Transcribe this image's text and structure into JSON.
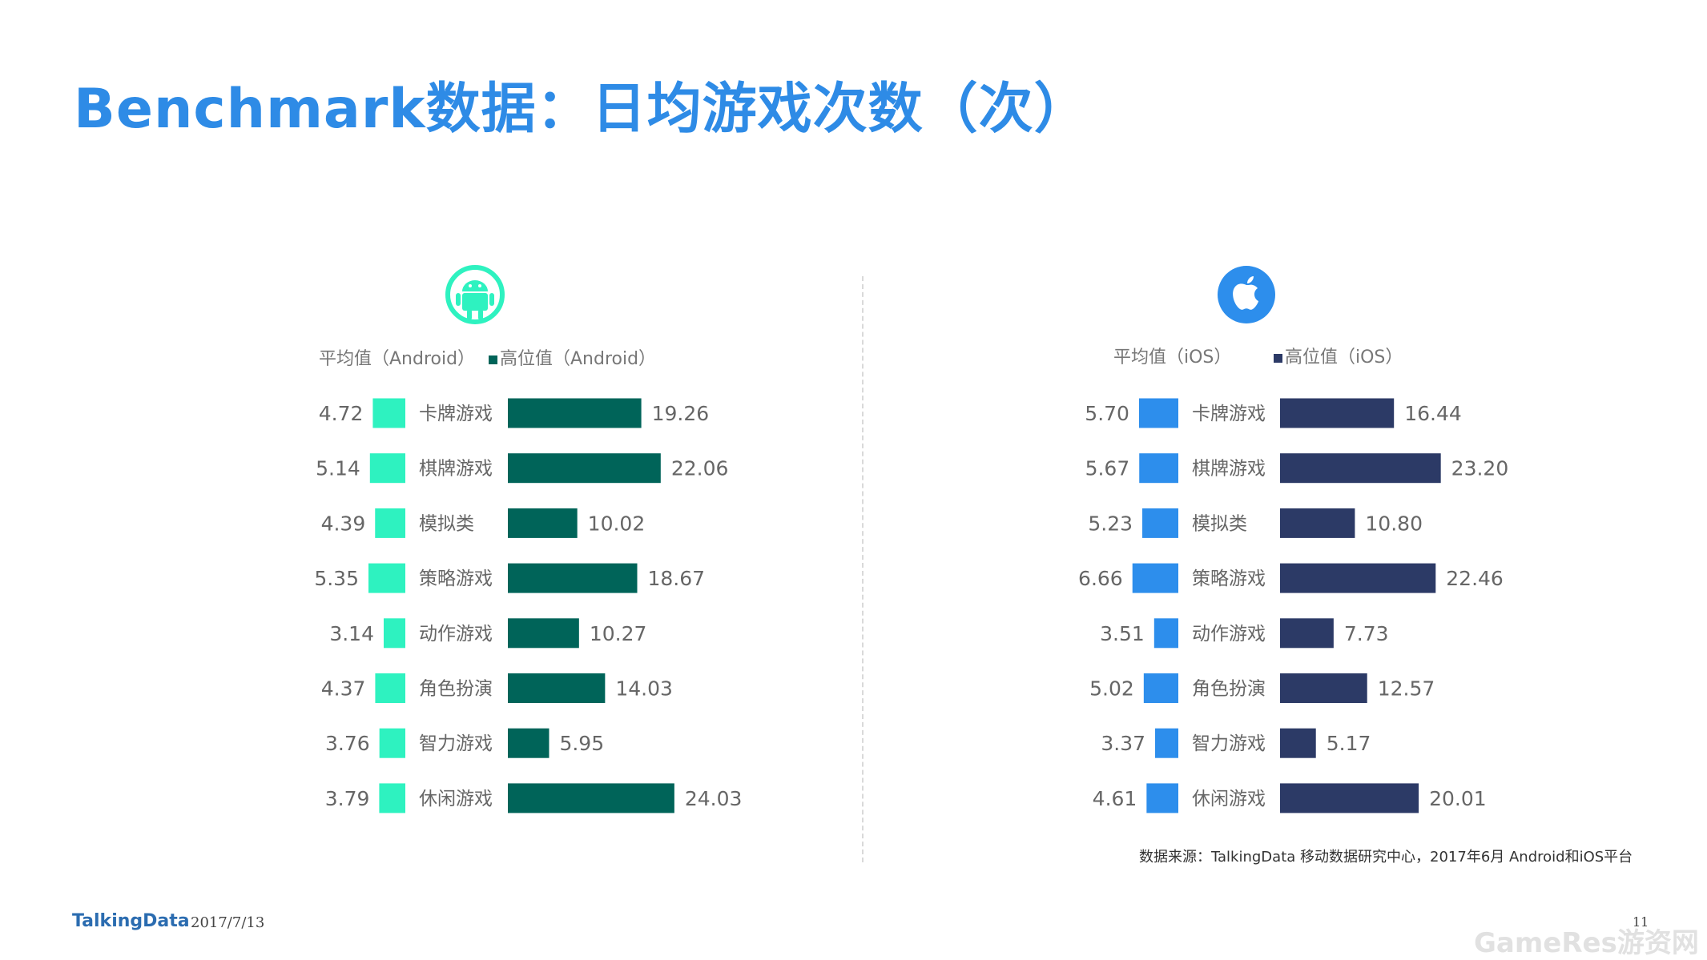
{
  "title": "Benchmark数据：日均游戏次数（次）",
  "legends": {
    "android_avg": "平均值（Android）",
    "android_high": "高位值（Android）",
    "ios_avg": "平均值（iOS）",
    "ios_high": "高位值（iOS）"
  },
  "icons": {
    "android": "android-robot-icon",
    "ios": "apple-logo-icon"
  },
  "colors": {
    "title": "#2E8BE6",
    "android_avg": "#2EF2C0",
    "android_high": "#006459",
    "ios_avg": "#2D8EEC",
    "ios_high": "#2C3A66",
    "value_text": "#666666",
    "category_text": "#666666"
  },
  "chart_data": [
    {
      "type": "bar",
      "platform": "Android",
      "categories": [
        "卡牌游戏",
        "棋牌游戏",
        "模拟类",
        "策略游戏",
        "动作游戏",
        "角色扮演",
        "智力游戏",
        "休闲游戏"
      ],
      "series": [
        {
          "name": "平均值（Android）",
          "values": [
            4.72,
            5.14,
            4.39,
            5.35,
            3.14,
            4.37,
            3.76,
            3.79
          ],
          "labels": [
            "4.72",
            "5.14",
            "4.39",
            "5.35",
            "3.14",
            "4.37",
            "3.76",
            "3.79"
          ]
        },
        {
          "name": "高位值（Android）",
          "values": [
            19.26,
            22.06,
            10.02,
            18.67,
            10.27,
            14.03,
            5.95,
            24.03
          ],
          "labels": [
            "19.26",
            "22.06",
            "10.02",
            "18.67",
            "10.27",
            "14.03",
            "5.95",
            "24.03"
          ]
        }
      ]
    },
    {
      "type": "bar",
      "platform": "iOS",
      "categories": [
        "卡牌游戏",
        "棋牌游戏",
        "模拟类",
        "策略游戏",
        "动作游戏",
        "角色扮演",
        "智力游戏",
        "休闲游戏"
      ],
      "series": [
        {
          "name": "平均值（iOS）",
          "values": [
            5.7,
            5.67,
            5.23,
            6.66,
            3.51,
            5.02,
            3.37,
            4.61
          ],
          "labels": [
            "5.70",
            "5.67",
            "5.23",
            "6.66",
            "3.51",
            "5.02",
            "3.37",
            "4.61"
          ]
        },
        {
          "name": "高位值（iOS）",
          "values": [
            16.44,
            23.2,
            10.8,
            22.46,
            7.73,
            12.57,
            5.17,
            20.01
          ],
          "labels": [
            "16.44",
            "23.20",
            "10.80",
            "22.46",
            "7.73",
            "12.57",
            "5.17",
            "20.01"
          ]
        }
      ]
    }
  ],
  "source": "数据来源：TalkingData 移动数据研究中心，2017年6月 Android和iOS平台",
  "footer": {
    "logo": "TalkingData",
    "date": "2017/7/13",
    "page": "11",
    "watermark": "GameRes游资网"
  }
}
